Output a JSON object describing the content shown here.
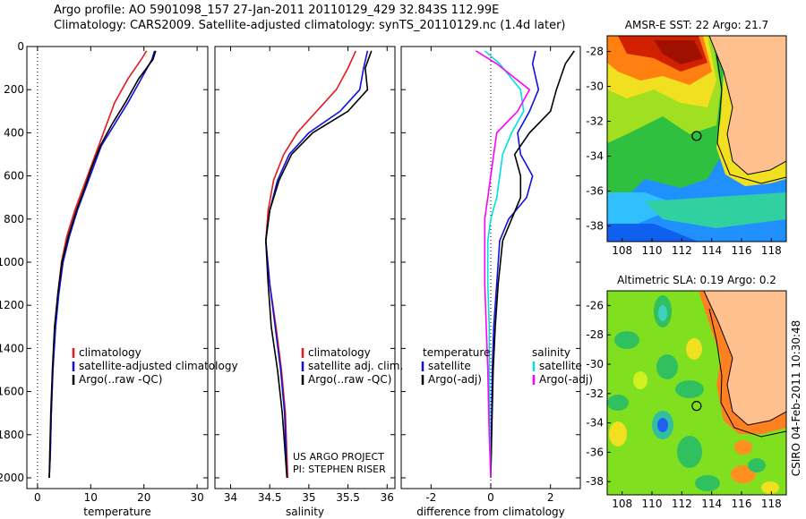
{
  "header": {
    "line1": "Argo profile: AO 5901098_157 27-Jan-2011 20110129_429 32.843S 112.99E",
    "line2": "Climatology: CARS2009. Satellite-adjusted climatology: synTS_20110129.nc (1.4d later)"
  },
  "side_label": "CSIRO 04-Feb-2011 10:30:48",
  "project": {
    "line1": "US ARGO PROJECT",
    "line2": "PI: STEPHEN RISER"
  },
  "colors": {
    "red": "#e41a1c",
    "blue": "#1010e0",
    "black": "#000000",
    "cyan": "#00e0e0",
    "magenta": "#ff00ff"
  },
  "chart_data": [
    {
      "type": "line",
      "xlabel": "temperature",
      "ylim": [
        2050,
        0
      ],
      "xlim": [
        -2,
        32
      ],
      "xticks": [
        0,
        10,
        20,
        30
      ],
      "yticks": [
        0,
        200,
        400,
        600,
        800,
        1000,
        1200,
        1400,
        1600,
        1800,
        2000
      ],
      "legend": [
        "climatology",
        "satellite-adjusted climatology",
        "Argo(..raw -QC)"
      ],
      "series": [
        {
          "name": "climatology",
          "color": "red",
          "x": [
            20.5,
            19.5,
            17,
            14.5,
            13,
            11.5,
            10,
            8.5,
            7,
            5.5,
            4.5,
            3.8,
            3.3,
            2.9,
            2.6,
            2.4,
            2.2
          ],
          "y": [
            20,
            60,
            150,
            260,
            360,
            460,
            560,
            660,
            760,
            880,
            1000,
            1150,
            1300,
            1500,
            1700,
            1900,
            2000
          ]
        },
        {
          "name": "satellite-adjusted climatology",
          "color": "blue",
          "x": [
            22,
            21.5,
            19.5,
            17,
            14.5,
            12,
            10.5,
            9,
            7.5,
            6,
            4.8,
            4,
            3.4,
            2.9,
            2.6,
            2.4,
            2.2
          ],
          "y": [
            20,
            60,
            150,
            260,
            360,
            460,
            560,
            660,
            760,
            880,
            1000,
            1150,
            1300,
            1500,
            1700,
            1900,
            2000
          ]
        },
        {
          "name": "Argo(..raw -QC)",
          "color": "black",
          "x": [
            22.2,
            21.7,
            19,
            16.5,
            14,
            11.8,
            10.2,
            8.8,
            7.3,
            5.8,
            4.6,
            3.8,
            3.2,
            2.8,
            2.5,
            2.3,
            2.2
          ],
          "y": [
            20,
            60,
            150,
            260,
            360,
            460,
            560,
            660,
            760,
            880,
            1000,
            1150,
            1300,
            1500,
            1700,
            1900,
            2000
          ]
        }
      ]
    },
    {
      "type": "line",
      "xlabel": "salinity",
      "ylim": [
        2050,
        0
      ],
      "xlim": [
        33.8,
        36.1
      ],
      "xticks": [
        34,
        34.5,
        35,
        35.5,
        36
      ],
      "legend": [
        "climatology",
        "satellite adj. clim.",
        "Argo(..raw -QC)"
      ],
      "series": [
        {
          "name": "climatology",
          "color": "red",
          "x": [
            35.6,
            35.5,
            35.35,
            35.1,
            34.85,
            34.68,
            34.55,
            34.48,
            34.45,
            34.5,
            34.58,
            34.65,
            34.7,
            34.72,
            34.73
          ],
          "y": [
            20,
            100,
            200,
            300,
            400,
            500,
            620,
            760,
            900,
            1100,
            1300,
            1500,
            1700,
            1900,
            2000
          ]
        },
        {
          "name": "satellite adj. clim.",
          "color": "blue",
          "x": [
            35.75,
            35.7,
            35.65,
            35.4,
            35.0,
            34.75,
            34.6,
            34.5,
            34.45,
            34.5,
            34.57,
            34.64,
            34.69,
            34.71,
            34.72
          ],
          "y": [
            20,
            100,
            200,
            300,
            400,
            500,
            620,
            760,
            900,
            1100,
            1300,
            1500,
            1700,
            1900,
            2000
          ]
        },
        {
          "name": "Argo(..raw -QC)",
          "color": "black",
          "x": [
            35.8,
            35.72,
            35.75,
            35.5,
            35.05,
            34.78,
            34.62,
            34.5,
            34.45,
            34.48,
            34.52,
            34.6,
            34.66,
            34.7,
            34.72
          ],
          "y": [
            20,
            100,
            200,
            300,
            400,
            500,
            620,
            760,
            900,
            1100,
            1300,
            1500,
            1700,
            1900,
            2000
          ]
        }
      ]
    },
    {
      "type": "line",
      "xlabel": "difference from climatology",
      "ylim": [
        2050,
        0
      ],
      "xlim": [
        -3,
        3
      ],
      "xticks": [
        -2,
        0,
        2
      ],
      "legend_headers": [
        "temperature",
        "salinity"
      ],
      "legend": [
        "satellite",
        "Argo(-adj)",
        "satellite",
        "Argo(-adj)"
      ],
      "series": [
        {
          "name": "satellite",
          "group": "temperature",
          "color": "blue",
          "x": [
            1.5,
            1.4,
            1.6,
            1.3,
            0.9,
            1.0,
            1.4,
            1.2,
            0.6,
            0.3,
            0.2,
            0.1,
            0.05,
            0.02,
            0.0
          ],
          "y": [
            20,
            80,
            200,
            300,
            400,
            500,
            600,
            700,
            800,
            900,
            1100,
            1300,
            1500,
            1800,
            2000
          ]
        },
        {
          "name": "Argo(-adj)",
          "group": "temperature",
          "color": "black",
          "x": [
            2.8,
            2.5,
            2.2,
            2.0,
            1.3,
            0.8,
            1.0,
            1.0,
            0.7,
            0.4,
            0.25,
            0.15,
            0.08,
            0.03,
            0.0
          ],
          "y": [
            20,
            80,
            200,
            300,
            400,
            500,
            600,
            700,
            800,
            900,
            1100,
            1300,
            1500,
            1800,
            2000
          ]
        },
        {
          "name": "satellite",
          "group": "salinity",
          "color": "cyan",
          "x": [
            -0.2,
            0.3,
            1.0,
            1.1,
            0.7,
            0.4,
            0.3,
            0.2,
            0.0,
            -0.1,
            -0.1,
            -0.05,
            -0.05,
            -0.03,
            0.0
          ],
          "y": [
            20,
            80,
            200,
            300,
            400,
            500,
            600,
            700,
            800,
            900,
            1100,
            1300,
            1500,
            1800,
            2000
          ]
        },
        {
          "name": "Argo(-adj)",
          "group": "salinity",
          "color": "magenta",
          "x": [
            -0.5,
            0.2,
            1.3,
            0.9,
            0.2,
            0.1,
            0.0,
            -0.1,
            -0.2,
            -0.2,
            -0.2,
            -0.15,
            -0.1,
            -0.05,
            0.0
          ],
          "y": [
            20,
            80,
            200,
            300,
            400,
            500,
            600,
            700,
            800,
            900,
            1100,
            1300,
            1500,
            1800,
            2000
          ]
        }
      ]
    },
    {
      "type": "heatmap",
      "title": "AMSR-E SST: 22 Argo: 21.7",
      "xlim": [
        107,
        119
      ],
      "ylim": [
        -39,
        -27
      ],
      "xticks": [
        108,
        110,
        112,
        114,
        116,
        118
      ],
      "yticks": [
        -28,
        -30,
        -32,
        -34,
        -36,
        -38
      ],
      "marker": {
        "lon": 112.99,
        "lat": -32.843
      }
    },
    {
      "type": "heatmap",
      "title": "Altimetric SLA: 0.19 Argo: 0.2",
      "xlim": [
        107,
        119
      ],
      "ylim": [
        -39,
        -27
      ],
      "xticks": [
        108,
        110,
        112,
        114,
        116,
        118
      ],
      "yticks": [
        -26,
        -28,
        -30,
        -32,
        -34,
        -36,
        -38
      ],
      "marker": {
        "lon": 112.99,
        "lat": -32.843
      }
    }
  ]
}
